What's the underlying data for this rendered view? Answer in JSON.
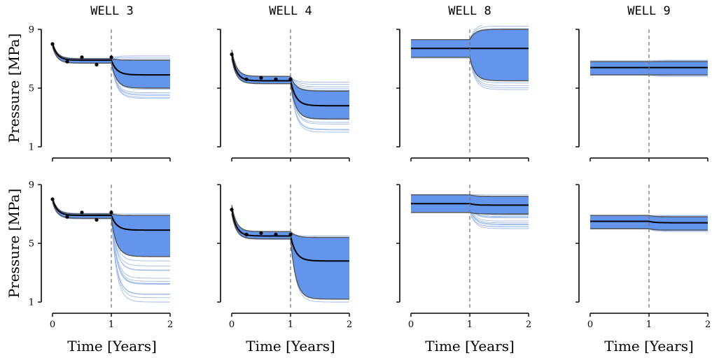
{
  "figure": {
    "column_titles": [
      "WELL 3",
      "WELL 4",
      "WELL 8",
      "WELL 9"
    ],
    "ylabel": "Pressure [MPa]",
    "xlabel": "Time [Years]",
    "xticks": [
      "0",
      "1",
      "2"
    ],
    "yticks": [
      "1",
      "5",
      "9"
    ]
  },
  "colors": {
    "ensemble": "#8fb0ea",
    "band": "#6495ed",
    "mean": "#000000",
    "bounds": "#555555",
    "observations": "#000000",
    "divider": "#777777"
  },
  "chart_data": [
    {
      "type": "line",
      "row": 1,
      "title": "WELL 3",
      "xlim": [
        0,
        2
      ],
      "ylim": [
        1,
        9
      ],
      "divider_x": 1,
      "observations": {
        "x": [
          0.0,
          0.25,
          0.5,
          0.75,
          1.0
        ],
        "y": [
          8.0,
          6.8,
          7.1,
          6.6,
          7.1
        ]
      },
      "mean": {
        "early": 8.0,
        "plateau": 6.9,
        "late": 5.9
      },
      "band": {
        "early_low": 7.8,
        "early_high": 8.1,
        "plateau_low": 6.7,
        "plateau_high": 7.0,
        "late_low": 5.0,
        "late_high": 6.9
      },
      "ensemble_range": {
        "late_min": 4.3,
        "late_max": 7.2
      }
    },
    {
      "type": "line",
      "row": 1,
      "title": "WELL 4",
      "xlim": [
        0,
        2
      ],
      "ylim": [
        1,
        9
      ],
      "divider_x": 1,
      "observations": {
        "x": [
          0.0,
          0.25,
          0.5,
          0.75,
          1.0
        ],
        "y": [
          7.3,
          5.6,
          5.7,
          5.6,
          5.6
        ]
      },
      "mean": {
        "early": 7.3,
        "plateau": 5.5,
        "late": 3.8
      },
      "band": {
        "early_low": 7.0,
        "early_high": 7.6,
        "plateau_low": 5.3,
        "plateau_high": 5.8,
        "late_low": 2.9,
        "late_high": 4.8
      },
      "ensemble_range": {
        "late_min": 2.0,
        "late_max": 5.4
      }
    },
    {
      "type": "line",
      "row": 1,
      "title": "WELL 8",
      "xlim": [
        0,
        2
      ],
      "ylim": [
        1,
        9
      ],
      "divider_x": 1,
      "observations": {
        "x": [],
        "y": []
      },
      "mean": {
        "early": 7.7,
        "plateau": 7.7,
        "late": 7.7
      },
      "band": {
        "early_low": 7.1,
        "early_high": 8.3,
        "plateau_low": 7.1,
        "plateau_high": 8.3,
        "late_low": 5.5,
        "late_high": 9.0
      },
      "ensemble_range": {
        "late_min": 4.9,
        "late_max": 9.4
      }
    },
    {
      "type": "line",
      "row": 1,
      "title": "WELL 9",
      "xlim": [
        0,
        2
      ],
      "ylim": [
        1,
        9
      ],
      "divider_x": 1,
      "observations": {
        "x": [],
        "y": []
      },
      "mean": {
        "early": 6.4,
        "plateau": 6.4,
        "late": 6.4
      },
      "band": {
        "early_low": 5.9,
        "early_high": 6.8,
        "plateau_low": 5.9,
        "plateau_high": 6.8,
        "late_low": 5.9,
        "late_high": 6.8
      },
      "ensemble_range": {
        "late_min": 5.8,
        "late_max": 6.9
      }
    },
    {
      "type": "line",
      "row": 2,
      "title": "WELL 3",
      "xlim": [
        0,
        2
      ],
      "ylim": [
        1,
        9
      ],
      "divider_x": 1,
      "observations": {
        "x": [
          0.0,
          0.25,
          0.5,
          0.75,
          1.0
        ],
        "y": [
          8.0,
          6.8,
          7.1,
          6.6,
          7.1
        ]
      },
      "mean": {
        "early": 8.0,
        "plateau": 6.9,
        "late": 5.9
      },
      "band": {
        "early_low": 7.8,
        "early_high": 8.1,
        "plateau_low": 6.7,
        "plateau_high": 7.0,
        "late_low": 4.1,
        "late_high": 6.9
      },
      "ensemble_range": {
        "late_min": 1.0,
        "late_max": 7.0
      }
    },
    {
      "type": "line",
      "row": 2,
      "title": "WELL 4",
      "xlim": [
        0,
        2
      ],
      "ylim": [
        1,
        9
      ],
      "divider_x": 1,
      "observations": {
        "x": [
          0.0,
          0.25,
          0.5,
          0.75,
          1.0
        ],
        "y": [
          7.3,
          5.6,
          5.7,
          5.6,
          5.6
        ]
      },
      "mean": {
        "early": 7.3,
        "plateau": 5.5,
        "late": 3.8
      },
      "band": {
        "early_low": 7.0,
        "early_high": 7.6,
        "plateau_low": 5.3,
        "plateau_high": 5.8,
        "late_low": 1.2,
        "late_high": 5.4
      },
      "ensemble_range": {
        "late_min": 1.0,
        "late_max": 5.5
      }
    },
    {
      "type": "line",
      "row": 2,
      "title": "WELL 8",
      "xlim": [
        0,
        2
      ],
      "ylim": [
        1,
        9
      ],
      "divider_x": 1,
      "observations": {
        "x": [],
        "y": []
      },
      "mean": {
        "early": 7.7,
        "plateau": 7.7,
        "late": 7.6
      },
      "band": {
        "early_low": 7.1,
        "early_high": 8.3,
        "plateau_low": 7.1,
        "plateau_high": 8.3,
        "late_low": 7.0,
        "late_high": 8.2
      },
      "ensemble_range": {
        "late_min": 6.0,
        "late_max": 8.3
      }
    },
    {
      "type": "line",
      "row": 2,
      "title": "WELL 9",
      "xlim": [
        0,
        2
      ],
      "ylim": [
        1,
        9
      ],
      "divider_x": 1,
      "observations": {
        "x": [],
        "y": []
      },
      "mean": {
        "early": 6.5,
        "plateau": 6.5,
        "late": 6.4
      },
      "band": {
        "early_low": 6.0,
        "early_high": 6.9,
        "plateau_low": 6.0,
        "plateau_high": 6.9,
        "late_low": 5.9,
        "late_high": 6.8
      },
      "ensemble_range": {
        "late_min": 5.8,
        "late_max": 6.9
      }
    }
  ]
}
